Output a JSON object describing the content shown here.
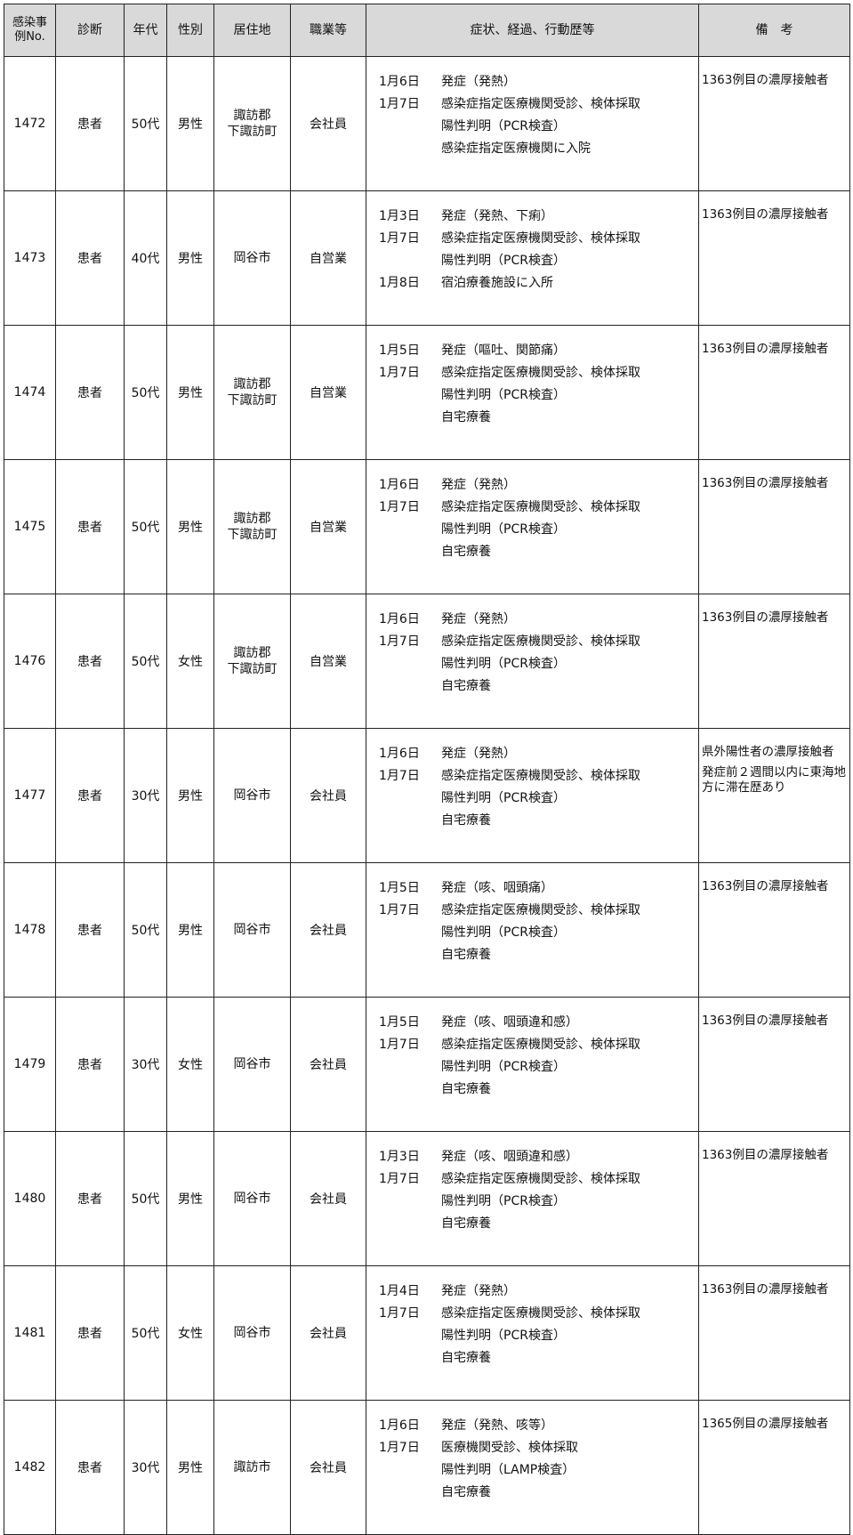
{
  "headers": {
    "no": "感染事例No.",
    "diagnosis": "診断",
    "age": "年代",
    "sex": "性別",
    "residence": "居住地",
    "occupation": "職業等",
    "course": "症状、経過、行動歴等",
    "remarks": "備　考"
  },
  "rows": [
    {
      "no": "1472",
      "diagnosis": "患者",
      "age": "50代",
      "sex": "男性",
      "residence": [
        "諏訪郡",
        "下諏訪町"
      ],
      "occupation": "会社員",
      "course": [
        {
          "date": "1月6日",
          "text": "発症（発熱）"
        },
        {
          "date": "1月7日",
          "text": "感染症指定医療機関受診、検体採取"
        },
        {
          "date": "",
          "text": "陽性判明（PCR検査）"
        },
        {
          "date": "",
          "text": "感染症指定医療機関に入院"
        }
      ],
      "remarks": [
        "1363例目の濃厚接触者"
      ]
    },
    {
      "no": "1473",
      "diagnosis": "患者",
      "age": "40代",
      "sex": "男性",
      "residence": [
        "岡谷市"
      ],
      "occupation": "自営業",
      "course": [
        {
          "date": "1月3日",
          "text": "発症（発熱、下痢）"
        },
        {
          "date": "1月7日",
          "text": "感染症指定医療機関受診、検体採取"
        },
        {
          "date": "",
          "text": "陽性判明（PCR検査）"
        },
        {
          "date": "1月8日",
          "text": "宿泊療養施設に入所"
        }
      ],
      "remarks": [
        "1363例目の濃厚接触者"
      ]
    },
    {
      "no": "1474",
      "diagnosis": "患者",
      "age": "50代",
      "sex": "男性",
      "residence": [
        "諏訪郡",
        "下諏訪町"
      ],
      "occupation": "自営業",
      "course": [
        {
          "date": "1月5日",
          "text": "発症（嘔吐、関節痛）"
        },
        {
          "date": "1月7日",
          "text": "感染症指定医療機関受診、検体採取"
        },
        {
          "date": "",
          "text": "陽性判明（PCR検査）"
        },
        {
          "date": "",
          "text": "自宅療養"
        }
      ],
      "remarks": [
        "1363例目の濃厚接触者"
      ]
    },
    {
      "no": "1475",
      "diagnosis": "患者",
      "age": "50代",
      "sex": "男性",
      "residence": [
        "諏訪郡",
        "下諏訪町"
      ],
      "occupation": "自営業",
      "course": [
        {
          "date": "1月6日",
          "text": "発症（発熱）"
        },
        {
          "date": "1月7日",
          "text": "感染症指定医療機関受診、検体採取"
        },
        {
          "date": "",
          "text": "陽性判明（PCR検査）"
        },
        {
          "date": "",
          "text": "自宅療養"
        }
      ],
      "remarks": [
        "1363例目の濃厚接触者"
      ]
    },
    {
      "no": "1476",
      "diagnosis": "患者",
      "age": "50代",
      "sex": "女性",
      "residence": [
        "諏訪郡",
        "下諏訪町"
      ],
      "occupation": "自営業",
      "course": [
        {
          "date": "1月6日",
          "text": "発症（発熱）"
        },
        {
          "date": "1月7日",
          "text": "感染症指定医療機関受診、検体採取"
        },
        {
          "date": "",
          "text": "陽性判明（PCR検査）"
        },
        {
          "date": "",
          "text": "自宅療養"
        }
      ],
      "remarks": [
        "1363例目の濃厚接触者"
      ]
    },
    {
      "no": "1477",
      "diagnosis": "患者",
      "age": "30代",
      "sex": "男性",
      "residence": [
        "岡谷市"
      ],
      "occupation": "会社員",
      "course": [
        {
          "date": "1月6日",
          "text": "発症（発熱）"
        },
        {
          "date": "1月7日",
          "text": "感染症指定医療機関受診、検体採取"
        },
        {
          "date": "",
          "text": "陽性判明（PCR検査）"
        },
        {
          "date": "",
          "text": "自宅療養"
        }
      ],
      "remarks": [
        "県外陽性者の濃厚接触者",
        "発症前２週間以内に東海地方に滞在歴あり"
      ]
    },
    {
      "no": "1478",
      "diagnosis": "患者",
      "age": "50代",
      "sex": "男性",
      "residence": [
        "岡谷市"
      ],
      "occupation": "会社員",
      "course": [
        {
          "date": "1月5日",
          "text": "発症（咳、咽頭痛）"
        },
        {
          "date": "1月7日",
          "text": "感染症指定医療機関受診、検体採取"
        },
        {
          "date": "",
          "text": "陽性判明（PCR検査）"
        },
        {
          "date": "",
          "text": "自宅療養"
        }
      ],
      "remarks": [
        "1363例目の濃厚接触者"
      ]
    },
    {
      "no": "1479",
      "diagnosis": "患者",
      "age": "30代",
      "sex": "女性",
      "residence": [
        "岡谷市"
      ],
      "occupation": "会社員",
      "course": [
        {
          "date": "1月5日",
          "text": "発症（咳、咽頭違和感）"
        },
        {
          "date": "1月7日",
          "text": "感染症指定医療機関受診、検体採取"
        },
        {
          "date": "",
          "text": "陽性判明（PCR検査）"
        },
        {
          "date": "",
          "text": "自宅療養"
        }
      ],
      "remarks": [
        "1363例目の濃厚接触者"
      ]
    },
    {
      "no": "1480",
      "diagnosis": "患者",
      "age": "50代",
      "sex": "男性",
      "residence": [
        "岡谷市"
      ],
      "occupation": "会社員",
      "course": [
        {
          "date": "1月3日",
          "text": "発症（咳、咽頭違和感）"
        },
        {
          "date": "1月7日",
          "text": "感染症指定医療機関受診、検体採取"
        },
        {
          "date": "",
          "text": "陽性判明（PCR検査）"
        },
        {
          "date": "",
          "text": "自宅療養"
        }
      ],
      "remarks": [
        "1363例目の濃厚接触者"
      ]
    },
    {
      "no": "1481",
      "diagnosis": "患者",
      "age": "50代",
      "sex": "女性",
      "residence": [
        "岡谷市"
      ],
      "occupation": "会社員",
      "course": [
        {
          "date": "1月4日",
          "text": "発症（発熱）"
        },
        {
          "date": "1月7日",
          "text": "感染症指定医療機関受診、検体採取"
        },
        {
          "date": "",
          "text": "陽性判明（PCR検査）"
        },
        {
          "date": "",
          "text": "自宅療養"
        }
      ],
      "remarks": [
        "1363例目の濃厚接触者"
      ]
    },
    {
      "no": "1482",
      "diagnosis": "患者",
      "age": "30代",
      "sex": "男性",
      "residence": [
        "諏訪市"
      ],
      "occupation": "会社員",
      "course": [
        {
          "date": "1月6日",
          "text": "発症（発熱、咳等）"
        },
        {
          "date": "1月7日",
          "text": "医療機関受診、検体採取"
        },
        {
          "date": "",
          "text": "陽性判明（LAMP検査）"
        },
        {
          "date": "",
          "text": "自宅療養"
        }
      ],
      "remarks": [
        "1365例目の濃厚接触者"
      ]
    }
  ]
}
